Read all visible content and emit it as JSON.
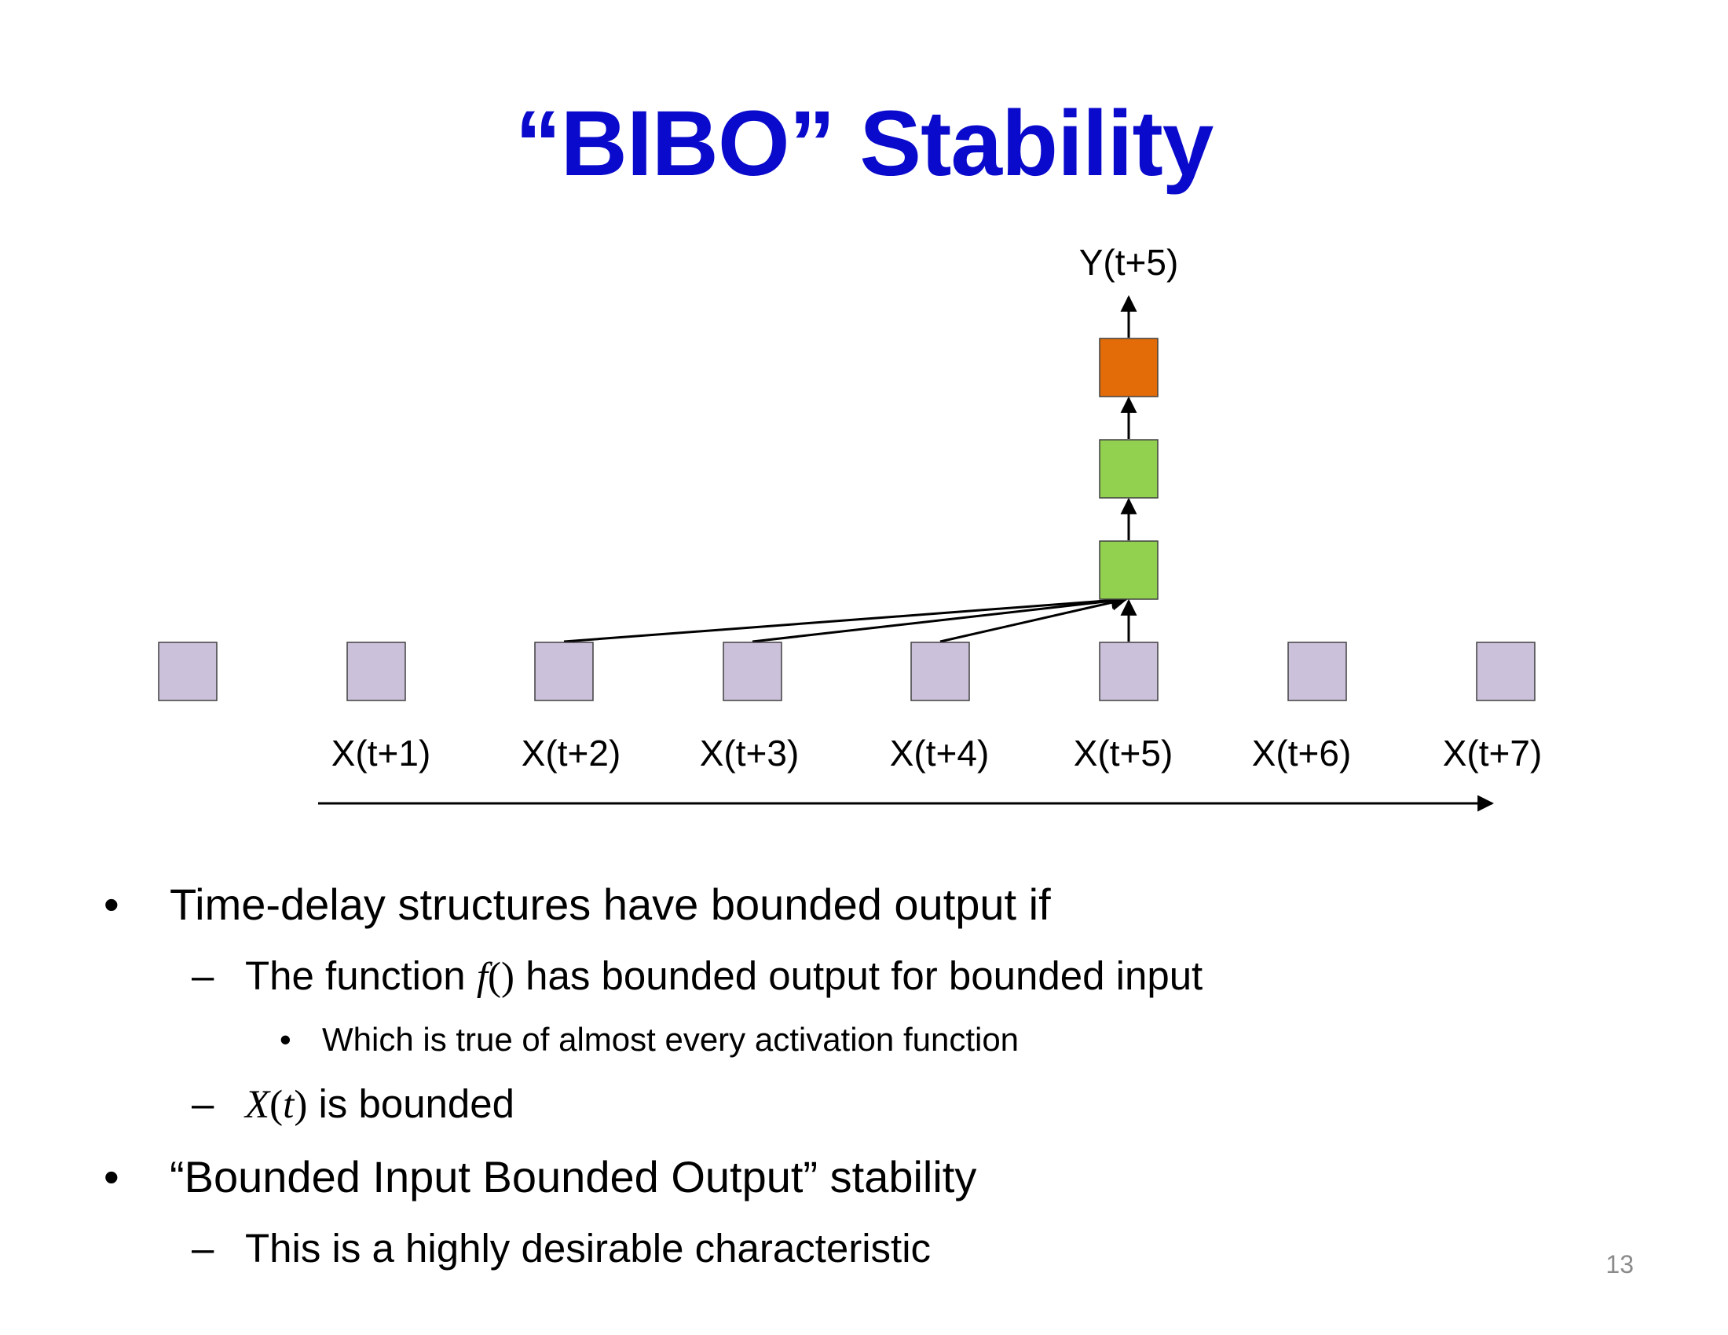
{
  "slide": {
    "title": "“BIBO” Stability",
    "page_number": "13"
  },
  "colors": {
    "title": "#0a0acc",
    "input_node": "#ccc1da",
    "hidden_node": "#92d050",
    "output_node": "#e36c09",
    "node_border": "#404040",
    "arrow": "#000000"
  },
  "diagram": {
    "output_label": "Y(t+5)",
    "input_labels": [
      "X(t+1)",
      "X(t+2)",
      "X(t+3)",
      "X(t+4)",
      "X(t+5)",
      "X(t+6)",
      "X(t+7)"
    ],
    "input_node_count": 8,
    "hidden_node_count": 2,
    "output_node_count": 1,
    "connected_inputs": [
      "X(t+2)",
      "X(t+3)",
      "X(t+4)",
      "X(t+5)"
    ]
  },
  "bullets": {
    "b1": {
      "marker": "•",
      "text": "Time-delay structures have bounded output if"
    },
    "b1_1": {
      "marker": "–",
      "pre": "The function ",
      "math_f": "f",
      "math_paren": "()",
      "post": " has bounded output for bounded input"
    },
    "b1_1_1": {
      "marker": "•",
      "text": "Which is true of almost every activation function"
    },
    "b1_2": {
      "marker": "–",
      "math_x": "X",
      "math_open": "(",
      "math_t": "t",
      "math_close": ")",
      "post": " is bounded"
    },
    "b2": {
      "marker": "•",
      "text": "“Bounded Input Bounded Output” stability"
    },
    "b2_1": {
      "marker": "–",
      "text": "This is a highly desirable characteristic"
    }
  }
}
